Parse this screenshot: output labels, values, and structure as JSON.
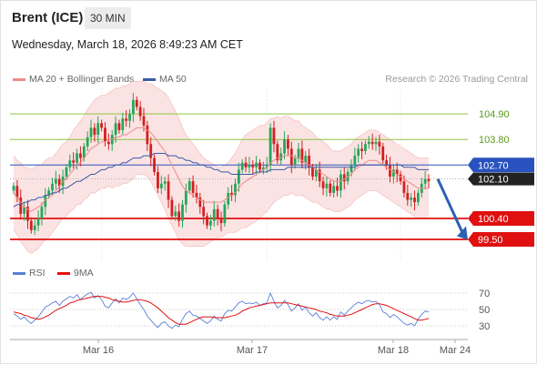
{
  "header": {
    "instrument": "Brent (ICE)",
    "timeframe": "30 MIN",
    "datetime": "Wednesday, March 18, 2026 8:49:23 AM CET"
  },
  "legend": {
    "items": [
      {
        "label": "MA 20 + Bollinger Bands",
        "color": "#f08a8a"
      },
      {
        "label": "MA 50",
        "color": "#3a5ba8"
      }
    ],
    "credit": "Research © 2026 Trading Central"
  },
  "rsi_legend": {
    "items": [
      {
        "label": "RSI",
        "color": "#5a7fd8"
      },
      {
        "label": "9MA",
        "color": "#e01010"
      }
    ]
  },
  "colors": {
    "up": "#26a65b",
    "down": "#d42020",
    "support": "#e01010",
    "resistance": "#8cc63f",
    "pivot": "#2a52be",
    "band_fill": "#fbe3e3",
    "arrow": "#2a62b4"
  },
  "chart_data": {
    "type": "candlestick",
    "instrument": "Brent (ICE)",
    "timeframe": "30 MIN",
    "ylim": [
      98.6,
      106.0
    ],
    "x_tick_labels": [
      "Mar 16",
      "Mar 17",
      "Mar 18",
      "Mar 24"
    ],
    "levels": [
      {
        "value": 104.9,
        "label": "104.90",
        "type": "resistance"
      },
      {
        "value": 103.8,
        "label": "103.80",
        "type": "resistance"
      },
      {
        "value": 102.7,
        "label": "102.70",
        "type": "pivot"
      },
      {
        "value": 100.4,
        "label": "100.40",
        "type": "support"
      },
      {
        "value": 99.5,
        "label": "99.50",
        "type": "support"
      }
    ],
    "last_price": {
      "value": 102.1,
      "label": "102.10"
    },
    "forecast_arrow": {
      "from": 102.1,
      "to": 99.6
    },
    "close": [
      101.8,
      101.3,
      100.6,
      100.9,
      100.3,
      99.9,
      100.1,
      100.4,
      100.9,
      101.4,
      101.6,
      101.9,
      102.1,
      101.8,
      102.2,
      102.6,
      102.9,
      102.8,
      103.2,
      103.0,
      103.5,
      103.9,
      104.3,
      104.0,
      104.5,
      104.3,
      103.7,
      103.6,
      104.0,
      104.5,
      104.2,
      104.7,
      104.6,
      104.9,
      105.5,
      105.2,
      104.8,
      104.4,
      103.6,
      103.0,
      102.4,
      101.7,
      101.9,
      102.0,
      101.2,
      100.5,
      100.7,
      100.3,
      101.0,
      101.6,
      102.0,
      101.5,
      101.3,
      100.9,
      100.5,
      100.1,
      100.3,
      100.8,
      100.4,
      100.2,
      101.0,
      101.5,
      101.4,
      101.9,
      102.5,
      102.8,
      102.6,
      102.7,
      102.6,
      102.8,
      102.5,
      102.6,
      102.7,
      104.3,
      103.6,
      102.9,
      103.2,
      103.8,
      103.4,
      102.7,
      103.0,
      103.4,
      102.8,
      103.1,
      102.6,
      102.2,
      102.5,
      102.0,
      101.7,
      101.9,
      101.5,
      101.8,
      101.6,
      102.3,
      102.0,
      102.4,
      102.7,
      103.1,
      103.4,
      103.3,
      103.6,
      103.7,
      103.6,
      103.7,
      103.5,
      102.9,
      102.7,
      102.2,
      102.5,
      102.3,
      102.0,
      101.5,
      101.2,
      101.3,
      101.1,
      101.5,
      101.9,
      102.1,
      102.0
    ],
    "ma20": [
      101.5,
      101.3,
      101.1,
      100.9,
      100.8,
      100.7,
      100.8,
      100.9,
      101.0,
      101.2,
      101.3,
      101.4,
      101.6,
      101.8,
      102.0,
      102.1,
      102.3,
      102.5,
      102.7,
      102.8,
      103.0,
      103.2,
      103.4,
      103.5,
      103.6,
      103.7,
      103.7,
      103.8,
      103.8,
      103.9,
      103.9,
      104.0,
      104.0,
      104.1,
      104.2,
      104.3,
      104.3,
      104.3,
      104.2,
      104.1,
      103.9,
      103.7,
      103.5,
      103.3,
      103.0,
      102.7,
      102.4,
      102.1,
      101.8,
      101.6,
      101.5,
      101.4,
      101.3,
      101.2,
      101.1,
      101.1,
      101.1,
      101.1,
      101.1,
      101.1,
      101.2,
      101.3,
      101.4,
      101.5,
      101.7,
      101.9,
      102.0,
      102.1,
      102.2,
      102.3,
      102.4,
      102.5,
      102.6,
      102.8,
      102.9,
      103.0,
      103.0,
      103.1,
      103.1,
      103.1,
      103.0,
      103.0,
      102.9,
      102.8,
      102.7,
      102.6,
      102.5,
      102.4,
      102.3,
      102.2,
      102.1,
      102.0,
      102.0,
      102.0,
      102.1,
      102.2,
      102.3,
      102.5,
      102.6,
      102.7,
      102.8,
      102.9,
      102.9,
      102.9,
      102.8,
      102.7,
      102.6,
      102.5,
      102.4,
      102.3,
      102.2,
      102.1,
      102.0,
      101.9,
      101.8,
      101.7,
      101.7,
      101.7,
      101.7
    ],
    "ma50": [
      100.9,
      101.0,
      101.0,
      101.1,
      101.1,
      101.2,
      101.2,
      101.3,
      101.3,
      101.4,
      101.4,
      101.5,
      101.5,
      101.6,
      101.7,
      101.7,
      101.8,
      101.9,
      102.0,
      102.0,
      102.1,
      102.2,
      102.3,
      102.3,
      102.4,
      102.5,
      102.5,
      102.6,
      102.6,
      102.7,
      102.7,
      102.8,
      102.8,
      102.9,
      103.0,
      103.0,
      103.0,
      103.1,
      103.1,
      103.1,
      103.2,
      103.2,
      103.2,
      103.2,
      103.1,
      103.1,
      103.1,
      103.0,
      103.0,
      102.9,
      102.9,
      102.8,
      102.8,
      102.7,
      102.7,
      102.6,
      102.6,
      102.5,
      102.5,
      102.4,
      102.4,
      102.4,
      102.3,
      102.3,
      102.3,
      102.3,
      102.3,
      102.3,
      102.3,
      102.4,
      102.4,
      102.4,
      102.4,
      102.5,
      102.5,
      102.5,
      102.5,
      102.5,
      102.6,
      102.6,
      102.6,
      102.6,
      102.6,
      102.6,
      102.6,
      102.6,
      102.6,
      102.6,
      102.6,
      102.6,
      102.6,
      102.6,
      102.6,
      102.6,
      102.6,
      102.6,
      102.6,
      102.6,
      102.7,
      102.7,
      102.7,
      102.7,
      102.7,
      102.7,
      102.7,
      102.7,
      102.7,
      102.7,
      102.7,
      102.7,
      102.7,
      102.6,
      102.6,
      102.6,
      102.6,
      102.5,
      102.5,
      102.5,
      102.5
    ],
    "band_width": [
      1.6,
      1.6,
      1.7,
      1.7,
      1.8,
      1.8,
      1.8,
      1.8,
      1.7,
      1.7,
      1.7,
      1.6,
      1.6,
      1.6,
      1.6,
      1.6,
      1.6,
      1.7,
      1.7,
      1.8,
      1.8,
      1.9,
      1.9,
      2.0,
      2.0,
      2.0,
      2.0,
      2.0,
      2.1,
      2.1,
      2.1,
      2.1,
      2.1,
      2.1,
      2.1,
      2.0,
      2.0,
      2.0,
      2.0,
      2.1,
      2.2,
      2.3,
      2.4,
      2.5,
      2.6,
      2.6,
      2.6,
      2.6,
      2.5,
      2.4,
      2.3,
      2.2,
      2.1,
      2.0,
      1.9,
      1.8,
      1.7,
      1.6,
      1.5,
      1.5,
      1.5,
      1.5,
      1.6,
      1.7,
      1.8,
      1.9,
      2.0,
      2.0,
      2.0,
      2.0,
      2.0,
      1.9,
      1.9,
      1.9,
      1.8,
      1.8,
      1.7,
      1.7,
      1.7,
      1.6,
      1.6,
      1.6,
      1.5,
      1.5,
      1.5,
      1.5,
      1.4,
      1.4,
      1.4,
      1.4,
      1.3,
      1.3,
      1.3,
      1.3,
      1.3,
      1.3,
      1.3,
      1.3,
      1.3,
      1.3,
      1.3,
      1.3,
      1.3,
      1.3,
      1.3,
      1.3,
      1.3,
      1.3,
      1.3,
      1.3,
      1.3,
      1.3,
      1.3,
      1.3,
      1.3,
      1.3,
      1.3,
      1.3,
      1.3
    ],
    "rsi": {
      "ticks": [
        70,
        50,
        30
      ],
      "ylim": [
        20,
        80
      ],
      "rsi": [
        45,
        42,
        38,
        41,
        36,
        33,
        37,
        41,
        47,
        53,
        55,
        58,
        60,
        55,
        60,
        63,
        66,
        64,
        68,
        62,
        66,
        69,
        71,
        64,
        67,
        62,
        54,
        52,
        58,
        63,
        58,
        64,
        62,
        65,
        70,
        63,
        56,
        50,
        42,
        37,
        32,
        28,
        33,
        35,
        30,
        27,
        31,
        29,
        38,
        45,
        48,
        43,
        42,
        39,
        36,
        33,
        36,
        42,
        38,
        36,
        45,
        49,
        48,
        53,
        58,
        60,
        57,
        58,
        57,
        59,
        55,
        57,
        58,
        70,
        60,
        52,
        55,
        61,
        56,
        48,
        52,
        57,
        49,
        53,
        46,
        42,
        46,
        40,
        37,
        41,
        37,
        41,
        38,
        47,
        43,
        48,
        52,
        56,
        59,
        57,
        60,
        61,
        59,
        60,
        56,
        47,
        45,
        40,
        44,
        41,
        37,
        33,
        31,
        33,
        30,
        38,
        44,
        48,
        47
      ],
      "ma9": [
        47,
        46,
        45,
        43,
        42,
        40,
        39,
        38,
        39,
        41,
        43,
        46,
        49,
        51,
        53,
        55,
        58,
        59,
        61,
        62,
        63,
        64,
        65,
        66,
        66,
        66,
        65,
        64,
        62,
        61,
        60,
        59,
        59,
        60,
        61,
        62,
        62,
        61,
        60,
        58,
        55,
        52,
        48,
        44,
        40,
        37,
        34,
        32,
        32,
        32,
        34,
        36,
        38,
        40,
        41,
        41,
        41,
        40,
        40,
        40,
        40,
        41,
        42,
        43,
        45,
        48,
        50,
        52,
        53,
        54,
        55,
        56,
        57,
        58,
        58,
        58,
        58,
        58,
        58,
        57,
        56,
        55,
        54,
        53,
        52,
        51,
        50,
        48,
        47,
        46,
        44,
        43,
        42,
        42,
        42,
        43,
        44,
        46,
        48,
        50,
        52,
        54,
        56,
        57,
        57,
        56,
        55,
        53,
        51,
        49,
        47,
        45,
        43,
        41,
        39,
        37,
        37,
        38,
        39
      ]
    }
  }
}
